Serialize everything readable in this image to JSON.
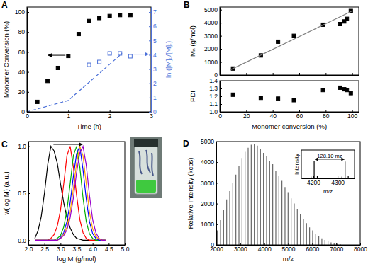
{
  "chart_data": [
    {
      "title": "A",
      "type": "scatter",
      "x_label": "Time (h)",
      "y_label": "Monomer Conversion (%)",
      "y2_label": "ln ([M]₀/[M]ₜ)",
      "xlim": [
        0,
        3
      ],
      "xticks": [
        0,
        1,
        2,
        3
      ],
      "ylim": [
        0,
        105
      ],
      "yticks": [
        0,
        20,
        40,
        60,
        80,
        100
      ],
      "y2lim": [
        0,
        7.35
      ],
      "y2ticks": [
        0,
        1,
        2,
        3,
        4,
        5,
        6,
        7
      ],
      "series": [
        {
          "type": "scatter",
          "marker": "filled-square",
          "color": "#000000",
          "x": [
            0.25,
            0.5,
            0.75,
            1,
            1.25,
            1.5,
            1.75,
            2,
            2.25,
            2.5
          ],
          "values": [
            10,
            31,
            44,
            56,
            78,
            91,
            94,
            96,
            97,
            97
          ]
        },
        {
          "type": "scatter",
          "marker": "open-square",
          "color": "#4a6fd8",
          "axis": "y2",
          "x": [
            1.5,
            1.75,
            2,
            2.25,
            2.5
          ],
          "values": [
            3.3,
            3.5,
            4.1,
            4.1,
            3.9
          ]
        },
        {
          "type": "line",
          "line_style": "dashed",
          "color": "#4a6fd8",
          "axis": "y2",
          "x": [
            0,
            1,
            2.3
          ],
          "values": [
            0,
            0.8,
            4.1
          ]
        }
      ]
    },
    {
      "title": "B",
      "type": "scatter",
      "y_label": "Mₙ (g/mol)",
      "tick_labels": "y",
      "xlim": [
        0,
        105
      ],
      "xticks": [
        0,
        20,
        40,
        60,
        80,
        100
      ],
      "ylim": [
        0,
        5200
      ],
      "yticks": [
        0,
        1000,
        2000,
        3000,
        4000,
        5000
      ],
      "series": [
        {
          "type": "scatter",
          "marker": "filled-square",
          "color": "#000000",
          "x": [
            10,
            31,
            44,
            56,
            78,
            91,
            94,
            96,
            99
          ],
          "values": [
            500,
            1500,
            2550,
            3000,
            3850,
            3900,
            4100,
            4300,
            4900
          ]
        },
        {
          "type": "line",
          "line_style": "solid",
          "color": "#808080",
          "x": [
            8,
            100
          ],
          "values": [
            400,
            4900
          ]
        }
      ]
    },
    {
      "type": "scatter",
      "x_label": "Monomer conversion (%)",
      "y_label": "PDI",
      "xlim": [
        0,
        105
      ],
      "xticks": [
        0,
        20,
        40,
        60,
        80,
        100
      ],
      "ylim": [
        1,
        1.4
      ],
      "yticks": [
        {
          "value": 1,
          "label": "1.0"
        },
        1.1,
        1.2,
        1.3,
        1.4
      ],
      "series": [
        {
          "type": "scatter",
          "marker": "filled-square",
          "color": "#000000",
          "x": [
            10,
            31,
            44,
            56,
            78,
            91,
            94,
            96,
            99
          ],
          "values": [
            1.22,
            1.18,
            1.17,
            1.15,
            1.28,
            1.31,
            1.29,
            1.28,
            1.24
          ]
        }
      ]
    },
    {
      "title": "C",
      "type": "line",
      "x_label": "log M (g/mol)",
      "y_label": "w(log M) (a.u.)",
      "xlim": [
        2,
        5
      ],
      "xticks": [
        {
          "value": 2,
          "label": "2.0"
        },
        2.5,
        {
          "value": 3,
          "label": "3.0"
        },
        3.5,
        {
          "value": 4,
          "label": "4.0"
        },
        4.5,
        {
          "value": 5,
          "label": "5.0"
        }
      ],
      "ylim": [
        -0.05,
        1.05
      ],
      "yticks": [
        {
          "value": 0,
          "label": "0.0"
        },
        0.5,
        {
          "value": 1,
          "label": "1.0"
        }
      ],
      "x": [
        2.2,
        2.3,
        2.4,
        2.5,
        2.6,
        2.7,
        2.8,
        2.9,
        3.0,
        3.1,
        3.2,
        3.3,
        3.4,
        3.5,
        3.6,
        3.7,
        3.8,
        3.9,
        4.0,
        4.1,
        4.2,
        4.3,
        4.4
      ],
      "series": [
        {
          "color": "#000000",
          "values": [
            0.02,
            0.1,
            0.25,
            0.5,
            0.8,
            1.0,
            0.95,
            0.82,
            0.6,
            0.4,
            0.24,
            0.13,
            0.06,
            0.02,
            0.01,
            0,
            0,
            0,
            0,
            0,
            0,
            0,
            0
          ]
        },
        {
          "color": "#ff0000",
          "values": [
            0,
            0,
            0,
            0,
            0,
            0.02,
            0.06,
            0.15,
            0.32,
            0.6,
            0.9,
            1.0,
            0.78,
            0.48,
            0.22,
            0.08,
            0.02,
            0,
            0,
            0,
            0,
            0,
            0
          ]
        },
        {
          "color": "#00b000",
          "values": [
            0,
            0,
            0,
            0,
            0,
            0,
            0,
            0.02,
            0.05,
            0.14,
            0.32,
            0.6,
            0.9,
            1.0,
            0.78,
            0.45,
            0.2,
            0.07,
            0.02,
            0,
            0,
            0,
            0
          ]
        },
        {
          "color": "#0000ff",
          "values": [
            0,
            0,
            0,
            0,
            0,
            0,
            0,
            0,
            0.03,
            0.08,
            0.2,
            0.4,
            0.68,
            0.92,
            1.0,
            0.75,
            0.44,
            0.2,
            0.07,
            0.02,
            0,
            0,
            0
          ]
        },
        {
          "color": "#ffa500",
          "values": [
            0,
            0,
            0,
            0,
            0,
            0,
            0,
            0,
            0.02,
            0.06,
            0.14,
            0.3,
            0.55,
            0.82,
            1.0,
            0.9,
            0.6,
            0.3,
            0.12,
            0.04,
            0.01,
            0,
            0
          ]
        },
        {
          "color": "#9900cc",
          "values": [
            0,
            0,
            0,
            0,
            0,
            0,
            0,
            0,
            0.02,
            0.05,
            0.11,
            0.24,
            0.45,
            0.72,
            0.93,
            1.0,
            0.8,
            0.48,
            0.22,
            0.08,
            0.02,
            0,
            0
          ]
        }
      ]
    },
    {
      "title": "D",
      "type": "bar",
      "x_label": "m/z",
      "y_label": "Relative Intensity (kcps)",
      "color": "#666666",
      "xlim": [
        2000,
        8000
      ],
      "xticks": [
        2000,
        3000,
        4000,
        5000,
        6000,
        7000,
        8000
      ],
      "ylim": [
        0,
        5000
      ],
      "yticks": [
        0,
        1000,
        2000,
        3000,
        4000,
        5000
      ],
      "x": [
        2050,
        2178,
        2306,
        2434,
        2562,
        2690,
        2818,
        2946,
        3074,
        3202,
        3330,
        3458,
        3586,
        3714,
        3842,
        3970,
        4098,
        4226,
        4354,
        4482,
        4610,
        4738,
        4866,
        4994,
        5122,
        5250,
        5378,
        5506,
        5634,
        5762,
        5890,
        6018,
        6146,
        6274,
        6402,
        6530,
        6658,
        6786,
        6914,
        7042,
        7170
      ],
      "values": [
        700,
        1200,
        1700,
        2200,
        2600,
        3000,
        3400,
        3800,
        4200,
        4500,
        4700,
        4850,
        4900,
        4800,
        4650,
        4450,
        4300,
        4050,
        3900,
        3600,
        3350,
        3100,
        2800,
        2550,
        2250,
        2000,
        1750,
        1500,
        1250,
        1050,
        850,
        700,
        550,
        420,
        320,
        240,
        170,
        120,
        80,
        50,
        30
      ]
    },
    {
      "type": "bar",
      "x_label": "m/z",
      "y_label": "Intensity",
      "annotation": "128.10 mz",
      "tick_labels": "x",
      "color": "#000000",
      "xlim": [
        4150,
        4370
      ],
      "xticks": [
        4200,
        4300
      ],
      "ylim": [
        0,
        1.6
      ],
      "x": [
        4190,
        4203,
        4216,
        4318,
        4331,
        4344
      ],
      "values": [
        0.1,
        1.0,
        0.12,
        0.1,
        0.95,
        0.12
      ]
    }
  ]
}
